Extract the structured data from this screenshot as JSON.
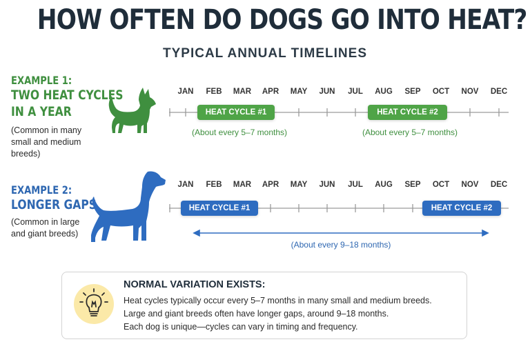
{
  "header": {
    "title": "HOW OFTEN DO DOGS GO INTO HEAT?",
    "subtitle": "TYPICAL ANNUAL TIMELINES"
  },
  "months": [
    "JAN",
    "FEB",
    "MAR",
    "APR",
    "MAY",
    "JUN",
    "JUL",
    "AUG",
    "SEP",
    "OCT",
    "NOV",
    "DEC"
  ],
  "example1": {
    "label": "EXAMPLE 1:",
    "title_line1": "TWO HEAT CYCLES",
    "title_line2": "IN A YEAR",
    "note_line1": "(Common in many",
    "note_line2": "small and medium",
    "note_line3": "breeds)",
    "cycle1_label": "HEAT CYCLE #1",
    "cycle2_label": "HEAT CYCLE #2",
    "interval1": "(About every 5–7 months)",
    "interval2": "(About every 5–7 months)",
    "accent": "#3f8f3f",
    "pill_color": "#4fa447"
  },
  "example2": {
    "label": "EXAMPLE 2:",
    "title": "LONGER GAPS",
    "note_line1": "(Common in large",
    "note_line2": "and giant breeds)",
    "cycle1_label": "HEAT CYCLE #1",
    "cycle2_label": "HEAT CYCLE #2",
    "interval": "(About every 9–18 months)",
    "accent": "#2e67b1",
    "pill_color": "#2e6cc0"
  },
  "note": {
    "icon": "lightbulb-icon",
    "heading": "NORMAL VARIATION EXISTS:",
    "line1": "Heat cycles typically occur every 5–7 months in many small and medium breeds.",
    "line2": "Large and giant breeds often have longer gaps, around 9–18 months.",
    "line3": "Each dog is unique—cycles can vary in timing and frequency."
  }
}
